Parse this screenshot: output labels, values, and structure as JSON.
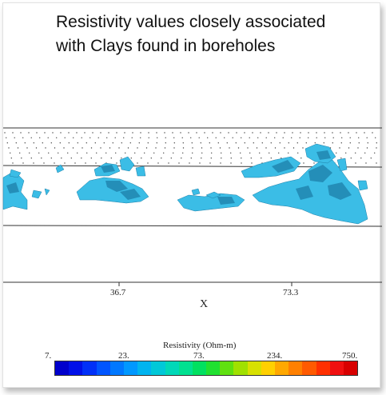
{
  "title": {
    "line1": "Resistivity values closely associated",
    "line2": "with Clays found in boreholes"
  },
  "x_axis": {
    "name": "X",
    "ticks": [
      "36.7",
      "73.3"
    ]
  },
  "colorbar": {
    "title": "Resistivity (Ohm-m)",
    "labels": [
      "7.",
      "23.",
      "73.",
      "234.",
      "750."
    ],
    "colors": [
      "#0000cc",
      "#0010e8",
      "#0030f8",
      "#0055ff",
      "#0078ff",
      "#0098ff",
      "#00b4f0",
      "#00c8d8",
      "#00d8b8",
      "#00e090",
      "#00e060",
      "#20e030",
      "#60e010",
      "#a0e000",
      "#d8e000",
      "#ffd000",
      "#ffa800",
      "#ff8000",
      "#ff5a00",
      "#ff3000",
      "#f01010",
      "#d80000"
    ]
  },
  "surface_color": "#3bbde6",
  "surface_shade": "#1d7fa8"
}
